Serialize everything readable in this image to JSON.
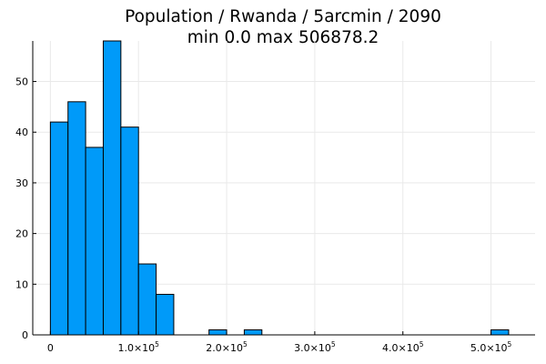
{
  "chart_data": {
    "type": "bar",
    "title": "Population / Rwanda / 5arcmin / 2090",
    "subtitle": "min 0.0  max 506878.2",
    "xlabel": "",
    "ylabel": "",
    "bin_width": 20000,
    "bins": [
      {
        "x0": 0,
        "x1": 20000,
        "value": 42
      },
      {
        "x0": 20000,
        "x1": 40000,
        "value": 46
      },
      {
        "x0": 40000,
        "x1": 60000,
        "value": 37
      },
      {
        "x0": 60000,
        "x1": 80000,
        "value": 58
      },
      {
        "x0": 80000,
        "x1": 100000,
        "value": 41
      },
      {
        "x0": 100000,
        "x1": 120000,
        "value": 14
      },
      {
        "x0": 120000,
        "x1": 140000,
        "value": 8
      },
      {
        "x0": 180000,
        "x1": 200000,
        "value": 1
      },
      {
        "x0": 220000,
        "x1": 240000,
        "value": 1
      },
      {
        "x0": 500000,
        "x1": 520000,
        "value": 1
      }
    ],
    "xlim": [
      -20000,
      550000
    ],
    "ylim": [
      0,
      58
    ],
    "x_ticks": [
      {
        "value": 0,
        "base": "0",
        "exp": ""
      },
      {
        "value": 100000,
        "base": "1.0×10",
        "exp": "5"
      },
      {
        "value": 200000,
        "base": "2.0×10",
        "exp": "5"
      },
      {
        "value": 300000,
        "base": "3.0×10",
        "exp": "5"
      },
      {
        "value": 400000,
        "base": "4.0×10",
        "exp": "5"
      },
      {
        "value": 500000,
        "base": "5.0×10",
        "exp": "5"
      }
    ],
    "y_ticks": [
      0,
      10,
      20,
      30,
      40,
      50
    ],
    "grid": true,
    "legend": "none",
    "bar_color": "#009af9"
  }
}
